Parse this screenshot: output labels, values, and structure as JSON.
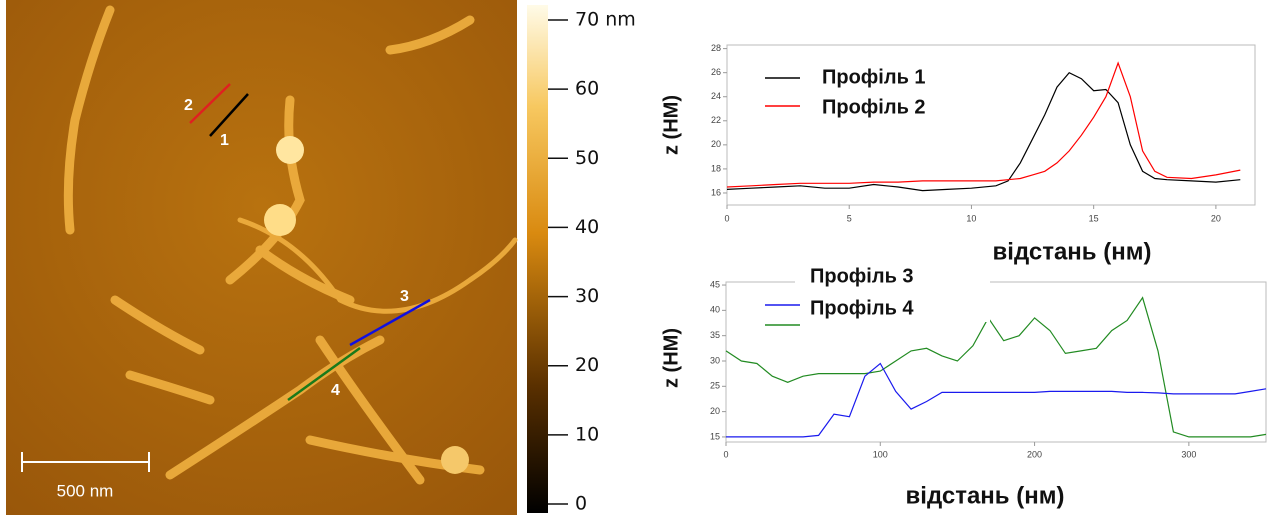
{
  "image": {
    "scale_bar_label": "500 nm",
    "profile_labels": [
      "1",
      "2",
      "3",
      "4"
    ]
  },
  "colorbar": {
    "lim": [
      0,
      70
    ],
    "ticks": [
      0,
      10,
      20,
      30,
      40,
      50,
      60,
      {
        "value": 70,
        "label": "70 nm"
      }
    ]
  },
  "chart_data": [
    {
      "type": "line",
      "xlabel": "відстань (нм)",
      "ylabel": "z (НМ)",
      "x": [
        0,
        1,
        2,
        3,
        4,
        5,
        6,
        7,
        8,
        9,
        10,
        11,
        11.5,
        12,
        12.5,
        13,
        13.5,
        14,
        14.5,
        15,
        15.5,
        16,
        16.5,
        17,
        17.5,
        18,
        19,
        20,
        21
      ],
      "series": [
        {
          "name": "Профіль 1",
          "color": "#000000",
          "values": [
            16.3,
            16.4,
            16.5,
            16.6,
            16.4,
            16.4,
            16.7,
            16.5,
            16.2,
            16.3,
            16.4,
            16.6,
            17,
            18.5,
            20.5,
            22.5,
            24.8,
            26,
            25.5,
            24.5,
            24.6,
            23.5,
            20,
            17.8,
            17.2,
            17.1,
            17,
            16.9,
            17.1
          ]
        },
        {
          "name": "Профіль 2",
          "color": "#ff0000",
          "values": [
            16.5,
            16.6,
            16.7,
            16.8,
            16.8,
            16.8,
            16.9,
            16.9,
            17,
            17,
            17,
            17,
            17.1,
            17.2,
            17.5,
            17.8,
            18.5,
            19.5,
            20.8,
            22.3,
            24,
            26.8,
            24,
            19.5,
            17.8,
            17.3,
            17.2,
            17.5,
            17.9
          ]
        }
      ],
      "xlim": [
        0,
        21.6
      ],
      "xticks": [
        0,
        5,
        10,
        15,
        20
      ],
      "ylim": [
        15,
        28.3
      ],
      "yticks": [
        16,
        18,
        20,
        22,
        24,
        26,
        28
      ]
    },
    {
      "type": "line",
      "xlabel": "відстань (нм)",
      "ylabel": "z (НМ)",
      "x": [
        0,
        10,
        20,
        30,
        40,
        50,
        60,
        70,
        80,
        90,
        100,
        110,
        120,
        130,
        140,
        150,
        160,
        170,
        180,
        190,
        200,
        210,
        220,
        230,
        240,
        250,
        260,
        270,
        280,
        290,
        300,
        310,
        320,
        330,
        340,
        350
      ],
      "series": [
        {
          "name": "Профіль 3",
          "color": "#228b22",
          "values": [
            32,
            30,
            29.5,
            27,
            25.8,
            27,
            27.5,
            27.5,
            27.5,
            27.5,
            28,
            30,
            32,
            32.5,
            31,
            30,
            33,
            38.5,
            34,
            35,
            38.5,
            36,
            31.5,
            32,
            32.5,
            36,
            38,
            42.5,
            32,
            16,
            15,
            15,
            15,
            15,
            15,
            15.5
          ]
        },
        {
          "name": "Профіль 4",
          "color": "#1a1aee",
          "values": [
            15,
            15,
            15,
            15,
            15,
            15,
            15.3,
            19.5,
            19,
            27,
            29.5,
            24,
            20.5,
            22,
            23.8,
            23.8,
            23.8,
            23.8,
            23.8,
            23.8,
            23.8,
            24,
            24,
            24,
            24,
            24,
            23.8,
            23.8,
            23.7,
            23.5,
            23.5,
            23.5,
            23.5,
            23.5,
            24,
            24.5
          ]
        }
      ],
      "xlim": [
        0,
        350
      ],
      "xticks": [
        0,
        100,
        200,
        300
      ],
      "ylim": [
        14,
        45.6
      ],
      "yticks": [
        15,
        20,
        25,
        30,
        35,
        40,
        45
      ]
    }
  ]
}
